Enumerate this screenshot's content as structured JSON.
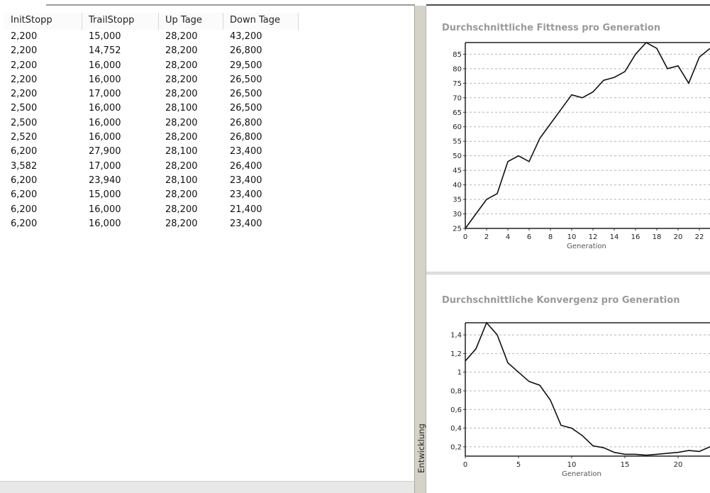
{
  "table": {
    "columns": [
      "InitStopp",
      "TrailStopp",
      "Up Tage",
      "Down Tage"
    ],
    "rows": [
      [
        "2,200",
        "15,000",
        "28,200",
        "43,200"
      ],
      [
        "2,200",
        "14,752",
        "28,200",
        "26,800"
      ],
      [
        "2,200",
        "16,000",
        "28,200",
        "29,500"
      ],
      [
        "2,200",
        "16,000",
        "28,200",
        "26,500"
      ],
      [
        "2,200",
        "17,000",
        "28,200",
        "26,500"
      ],
      [
        "2,500",
        "16,000",
        "28,100",
        "26,500"
      ],
      [
        "2,500",
        "16,000",
        "28,200",
        "26,800"
      ],
      [
        "2,520",
        "16,000",
        "28,200",
        "26,800"
      ],
      [
        "6,200",
        "27,900",
        "28,100",
        "23,400"
      ],
      [
        "3,582",
        "17,000",
        "28,200",
        "26,400"
      ],
      [
        "6,200",
        "23,940",
        "28,100",
        "23,400"
      ],
      [
        "6,200",
        "15,000",
        "28,200",
        "23,400"
      ],
      [
        "6,200",
        "16,000",
        "28,200",
        "21,400"
      ],
      [
        "6,200",
        "16,000",
        "28,200",
        "23,400"
      ]
    ]
  },
  "side_tab": {
    "label": "Entwicklung"
  },
  "chart_data": [
    {
      "type": "line",
      "title": "Durchschnittliche Fittness pro Generation",
      "xlabel": "Generation",
      "ylabel": "",
      "x": [
        0,
        1,
        2,
        3,
        4,
        5,
        6,
        7,
        8,
        9,
        10,
        11,
        12,
        13,
        14,
        15,
        16,
        17,
        18,
        19,
        20,
        21,
        22,
        23
      ],
      "values": [
        25,
        30,
        35,
        37,
        48,
        50,
        48,
        56,
        61,
        66,
        71,
        70,
        72,
        76,
        77,
        79,
        85,
        89,
        87,
        80,
        81,
        75,
        84,
        87
      ],
      "xlim": [
        0,
        23
      ],
      "ylim": [
        25,
        89
      ],
      "xticks": [
        0,
        2,
        4,
        6,
        8,
        10,
        12,
        14,
        16,
        18,
        20,
        22
      ],
      "xtick_labels": [
        "0",
        "2",
        "4",
        "6",
        "8",
        "10",
        "12",
        "14",
        "16",
        "18",
        "20",
        "22"
      ],
      "yticks": [
        25,
        30,
        35,
        40,
        45,
        50,
        55,
        60,
        65,
        70,
        75,
        80,
        85
      ],
      "ytick_labels": [
        "25",
        "30",
        "35",
        "40",
        "45",
        "50",
        "55",
        "60",
        "65",
        "70",
        "75",
        "80",
        "85"
      ],
      "grid": "horizontal dashed"
    },
    {
      "type": "line",
      "title": "Durchschnittliche Konvergenz pro Generation",
      "xlabel": "Generation",
      "ylabel": "",
      "x": [
        0,
        1,
        2,
        3,
        4,
        5,
        6,
        7,
        8,
        9,
        10,
        11,
        12,
        13,
        14,
        15,
        16,
        17,
        18,
        19,
        20,
        21,
        22,
        23
      ],
      "values": [
        1.12,
        1.25,
        1.53,
        1.4,
        1.1,
        1.0,
        0.9,
        0.86,
        0.7,
        0.43,
        0.4,
        0.32,
        0.21,
        0.19,
        0.14,
        0.12,
        0.12,
        0.11,
        0.12,
        0.13,
        0.14,
        0.16,
        0.15,
        0.2
      ],
      "xlim": [
        0,
        23
      ],
      "ylim": [
        0.1,
        1.53
      ],
      "xticks": [
        0,
        5,
        10,
        15,
        20
      ],
      "xtick_labels": [
        "0",
        "5",
        "10",
        "15",
        "20"
      ],
      "yticks": [
        0.2,
        0.4,
        0.6,
        0.8,
        1.0,
        1.2,
        1.4
      ],
      "ytick_labels": [
        "0,2",
        "0,4",
        "0,6",
        "0,8",
        "1",
        "1,2",
        "1,4"
      ],
      "grid": "horizontal dashed"
    }
  ]
}
